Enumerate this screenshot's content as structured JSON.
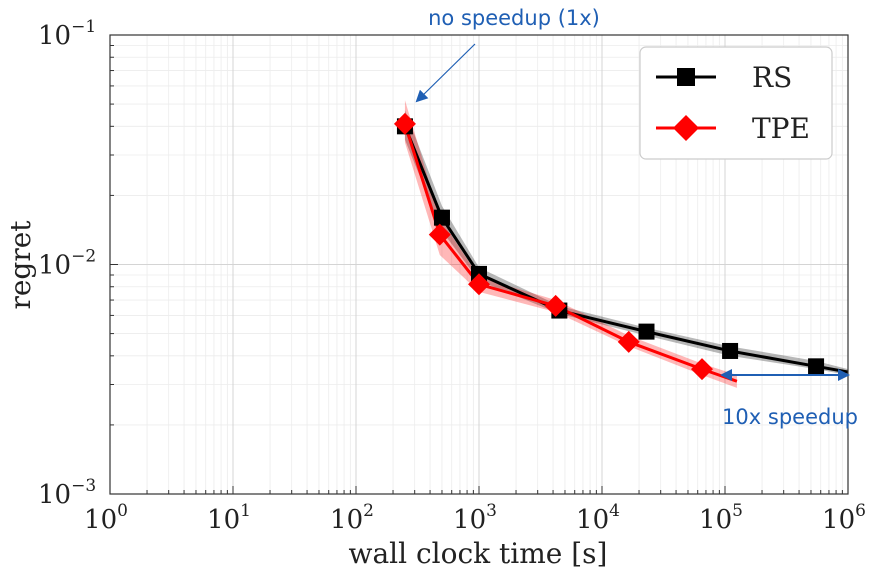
{
  "chart_data": {
    "type": "line",
    "xlabel": "wall clock time [s]",
    "ylabel": "regret",
    "xscale": "log",
    "yscale": "log",
    "xlim": [
      1,
      1000000
    ],
    "ylim": [
      0.001,
      0.1
    ],
    "grid": true,
    "legend_position": "top-right",
    "x_ticks": [
      {
        "base": "10",
        "exp": "0"
      },
      {
        "base": "10",
        "exp": "1"
      },
      {
        "base": "10",
        "exp": "2"
      },
      {
        "base": "10",
        "exp": "3"
      },
      {
        "base": "10",
        "exp": "4"
      },
      {
        "base": "10",
        "exp": "5"
      },
      {
        "base": "10",
        "exp": "6"
      }
    ],
    "y_ticks": [
      {
        "base": "10",
        "exp": "−1"
      },
      {
        "base": "10",
        "exp": "−2"
      },
      {
        "base": "10",
        "exp": "−3"
      }
    ],
    "series": [
      {
        "name": "RS",
        "color": "#000000",
        "marker": "square",
        "x": [
          250,
          500,
          1000,
          4500,
          23000,
          110000,
          550000,
          1000000
        ],
        "y": [
          0.04,
          0.016,
          0.0091,
          0.0063,
          0.0051,
          0.0042,
          0.0036,
          0.0034
        ],
        "markers_x": [
          250,
          500,
          1000,
          4500,
          23000,
          110000,
          550000
        ],
        "markers_y": [
          0.04,
          0.016,
          0.0091,
          0.0063,
          0.0051,
          0.0042,
          0.0036
        ],
        "band_low": [
          0.035,
          0.014,
          0.0085,
          0.0061,
          0.0049,
          0.004,
          0.0035,
          0.0033
        ],
        "band_high": [
          0.047,
          0.018,
          0.0097,
          0.0066,
          0.0053,
          0.0044,
          0.0038,
          0.0035
        ]
      },
      {
        "name": "TPE",
        "color": "#ff0000",
        "marker": "diamond",
        "x": [
          250,
          480,
          1000,
          4200,
          16500,
          65000,
          125000
        ],
        "y": [
          0.041,
          0.0135,
          0.0082,
          0.0066,
          0.0046,
          0.0035,
          0.0031
        ],
        "markers_x": [
          250,
          480,
          1000,
          4200,
          16500,
          65000
        ],
        "markers_y": [
          0.041,
          0.0135,
          0.0082,
          0.0066,
          0.0046,
          0.0035
        ],
        "band_low": [
          0.034,
          0.011,
          0.0076,
          0.0062,
          0.0044,
          0.0033,
          0.0029
        ],
        "band_high": [
          0.052,
          0.016,
          0.0088,
          0.007,
          0.0049,
          0.0037,
          0.0033
        ]
      }
    ],
    "annotations": [
      {
        "text": "no speedup (1x)",
        "color": "#1f5fb4",
        "arrow_from": [
          1100,
          0.078
        ],
        "arrow_to": [
          300,
          0.051
        ]
      },
      {
        "text": "10x speedup",
        "color": "#1f5fb4",
        "arrow_from": [
          100000,
          0.0034
        ],
        "arrow_to": [
          1000000,
          0.0034
        ],
        "double_headed": true
      }
    ]
  }
}
